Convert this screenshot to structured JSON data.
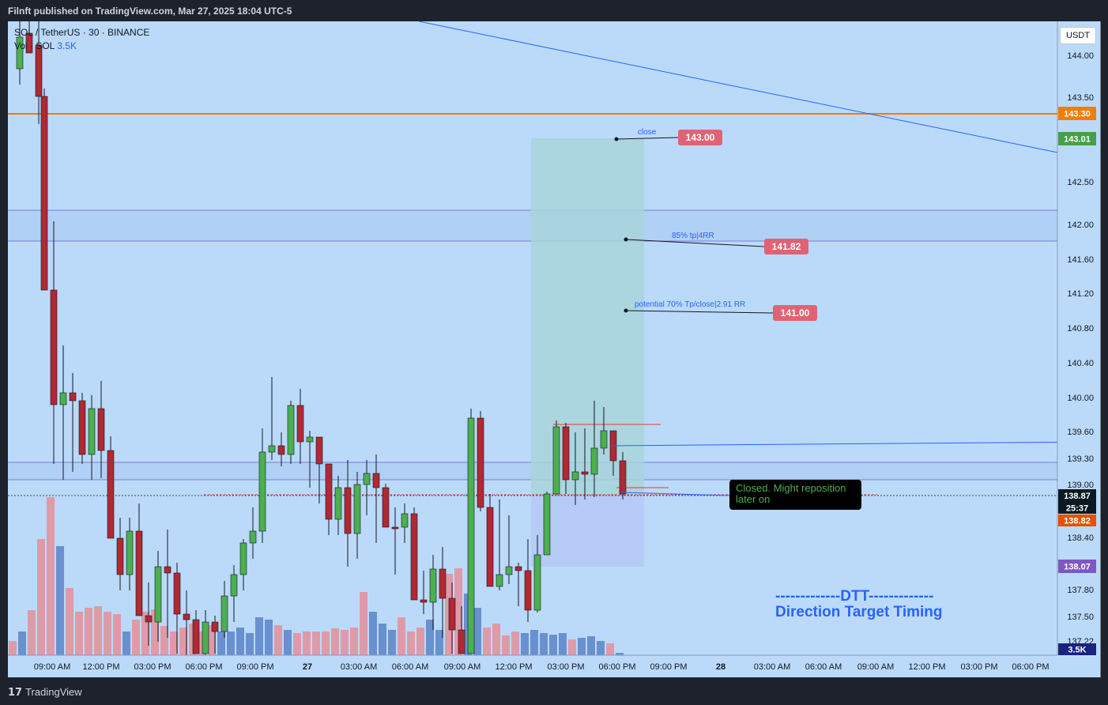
{
  "header": {
    "publisher": "Filnft published on TradingView.com, Mar 27, 2025 18:04 UTC-5"
  },
  "legend": {
    "symbol": "SOL / TetherUS · 30 · BINANCE",
    "volume_label": "Vol · SOL",
    "volume_value": "3.5K"
  },
  "currency_button": "USDT",
  "price_axis": [
    "144.00",
    "143.50",
    "142.50",
    "142.00",
    "141.60",
    "141.20",
    "140.80",
    "140.40",
    "140.00",
    "139.60",
    "139.30",
    "139.00",
    "138.40",
    "137.80",
    "137.50",
    "137.22"
  ],
  "price_badges": {
    "orange_line": "143.30",
    "green_line": "143.01",
    "current_price": "138.87",
    "countdown": "25:37",
    "orange_level": "138.82",
    "purple_level": "138.07",
    "volume": "3.5K"
  },
  "time_axis": [
    "09:00 AM",
    "12:00 PM",
    "03:00 PM",
    "06:00 PM",
    "09:00 PM",
    "27",
    "03:00 AM",
    "06:00 AM",
    "09:00 AM",
    "12:00 PM",
    "03:00 PM",
    "06:00 PM",
    "09:00 PM",
    "28",
    "03:00 AM",
    "06:00 AM",
    "09:00 AM",
    "12:00 PM",
    "03:00 PM",
    "06:00 PM"
  ],
  "annotations": {
    "close_label": "close",
    "close_price": "143.00",
    "tp85_label": "85% tp|4RR",
    "tp85_price": "141.82",
    "tp70_label": "potential 70% Tp/close|2.91 RR",
    "tp70_price": "141.00",
    "note_line1": "Closed. Might reposition",
    "note_line2": "later on",
    "dtt_title": "-------------DTT-------------",
    "dtt_subtitle": "Direction Target Timing"
  },
  "footer": {
    "brand": "TradingView"
  },
  "colors": {
    "bull": "#4caf50",
    "bear": "#b22833",
    "background": "#bbdafa",
    "accent_blue": "#2962ff",
    "orange": "#f57c00",
    "label_red": "#e06374"
  }
}
